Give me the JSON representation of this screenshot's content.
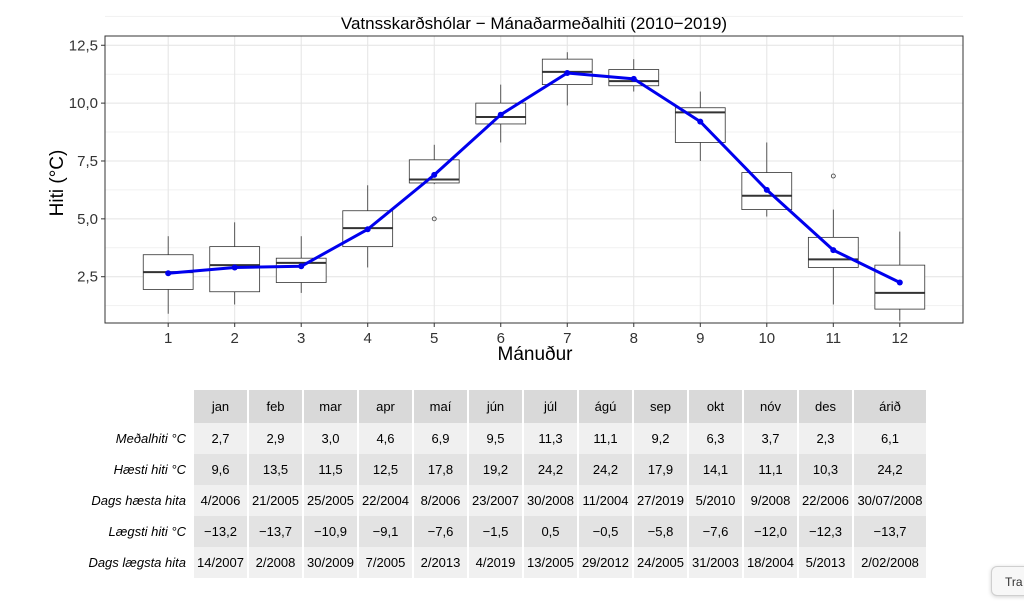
{
  "chart_data": {
    "type": "boxplot",
    "title": "Vatnsskarðshólar − Mánaðarmeðalhiti (2010−2019)",
    "xlabel": "Mánuður",
    "ylabel": "Hiti (°C)",
    "categories": [
      "1",
      "2",
      "3",
      "4",
      "5",
      "6",
      "7",
      "8",
      "9",
      "10",
      "11",
      "12"
    ],
    "y_ticks": [
      2.5,
      5.0,
      7.5,
      10.0,
      12.5
    ],
    "y_tick_labels": [
      "2,5",
      "5,0",
      "7,5",
      "10,0",
      "12,5"
    ],
    "ylim": [
      0.5,
      12.9
    ],
    "grid": true,
    "boxes": [
      {
        "min": 0.9,
        "q1": 1.95,
        "median": 2.7,
        "q3": 3.45,
        "max": 4.25,
        "outliers": []
      },
      {
        "min": 1.3,
        "q1": 1.85,
        "median": 3.0,
        "q3": 3.8,
        "max": 4.85,
        "outliers": []
      },
      {
        "min": 1.8,
        "q1": 2.25,
        "median": 3.1,
        "q3": 3.3,
        "max": 4.25,
        "outliers": []
      },
      {
        "min": 2.9,
        "q1": 3.8,
        "median": 4.6,
        "q3": 5.35,
        "max": 6.45,
        "outliers": []
      },
      {
        "min": 6.5,
        "q1": 6.55,
        "median": 6.7,
        "q3": 7.55,
        "max": 8.2,
        "outliers": [
          5.0
        ]
      },
      {
        "min": 8.3,
        "q1": 9.1,
        "median": 9.4,
        "q3": 10.0,
        "max": 10.8,
        "outliers": []
      },
      {
        "min": 9.9,
        "q1": 10.8,
        "median": 11.35,
        "q3": 11.9,
        "max": 12.2,
        "outliers": []
      },
      {
        "min": 10.5,
        "q1": 10.75,
        "median": 10.95,
        "q3": 11.45,
        "max": 11.9,
        "outliers": []
      },
      {
        "min": 7.5,
        "q1": 8.3,
        "median": 9.6,
        "q3": 9.8,
        "max": 10.5,
        "outliers": []
      },
      {
        "min": 5.1,
        "q1": 5.4,
        "median": 6.0,
        "q3": 7.0,
        "max": 8.3,
        "outliers": []
      },
      {
        "min": 1.3,
        "q1": 2.9,
        "median": 3.25,
        "q3": 4.2,
        "max": 5.4,
        "outliers": [
          6.85
        ]
      },
      {
        "min": 0.6,
        "q1": 1.1,
        "median": 1.8,
        "q3": 3.0,
        "max": 4.45,
        "outliers": []
      }
    ],
    "mean_line": {
      "values": [
        2.65,
        2.9,
        2.95,
        4.55,
        6.9,
        9.5,
        11.3,
        11.05,
        9.2,
        6.25,
        3.65,
        2.25
      ],
      "color": "#0000ee"
    }
  },
  "table": {
    "headers": [
      "jan",
      "feb",
      "mar",
      "apr",
      "maí",
      "jún",
      "júl",
      "ágú",
      "sep",
      "okt",
      "nóv",
      "des",
      "árið"
    ],
    "rows": [
      {
        "label": "Meðalhiti °C",
        "cells": [
          "2,7",
          "2,9",
          "3,0",
          "4,6",
          "6,9",
          "9,5",
          "11,3",
          "11,1",
          "9,2",
          "6,3",
          "3,7",
          "2,3",
          "6,1"
        ]
      },
      {
        "label": "Hæsti hiti °C",
        "cells": [
          "9,6",
          "13,5",
          "11,5",
          "12,5",
          "17,8",
          "19,2",
          "24,2",
          "24,2",
          "17,9",
          "14,1",
          "11,1",
          "10,3",
          "24,2"
        ]
      },
      {
        "label": "Dags hæsta hita",
        "cells": [
          "4/2006",
          "21/2005",
          "25/2005",
          "22/2004",
          "8/2006",
          "23/2007",
          "30/2008",
          "11/2004",
          "27/2019",
          "5/2010",
          "9/2008",
          "22/2006",
          "30/07/2008"
        ]
      },
      {
        "label": "Lægsti hiti °C",
        "cells": [
          "−13,2",
          "−13,7",
          "−10,9",
          "−9,1",
          "−7,6",
          "−1,5",
          "0,5",
          "−0,5",
          "−5,8",
          "−7,6",
          "−12,0",
          "−12,3",
          "−13,7"
        ]
      },
      {
        "label": "Dags lægsta hita",
        "cells": [
          "14/2007",
          "2/2008",
          "30/2009",
          "7/2005",
          "2/2013",
          "4/2019",
          "13/2005",
          "29/2012",
          "24/2005",
          "31/2003",
          "18/2004",
          "5/2013",
          "2/02/2008"
        ]
      }
    ]
  },
  "tooltip": {
    "label": "Tra"
  }
}
